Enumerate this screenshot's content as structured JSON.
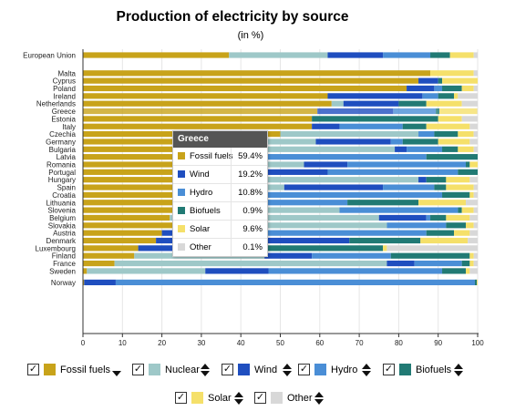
{
  "chart_data": {
    "type": "bar",
    "orientation": "horizontal",
    "stacked": true,
    "title": "Production of electricity by source",
    "subtitle": "(in %)",
    "xlim": [
      0,
      100
    ],
    "xticks": [
      0,
      10,
      20,
      30,
      40,
      50,
      60,
      70,
      80,
      90,
      100
    ],
    "categories": [
      "European Union",
      "Malta",
      "Cyprus",
      "Poland",
      "Ireland",
      "Netherlands",
      "Greece",
      "Estonia",
      "Italy",
      "Czechia",
      "Germany",
      "Bulgaria",
      "Latvia",
      "Romania",
      "Portugal",
      "Hungary",
      "Spain",
      "Croatia",
      "Lithuania",
      "Slovenia",
      "Belgium",
      "Slovakia",
      "Austria",
      "Denmark",
      "Luxembourg",
      "Finland",
      "France",
      "Sweden",
      "Norway"
    ],
    "series": [
      {
        "name": "Fossil fuels",
        "color": "#c8a31a",
        "values": [
          37,
          88,
          85,
          82,
          62,
          63,
          59.4,
          58,
          58,
          50,
          45,
          44,
          40,
          38,
          37,
          35,
          30,
          27,
          24,
          23,
          22,
          23,
          20,
          18.5,
          14,
          13,
          8,
          1,
          0.3
        ]
      },
      {
        "name": "Nuclear",
        "color": "#9ec8c8",
        "values": [
          25,
          0,
          0,
          0,
          0,
          3,
          0,
          0,
          0,
          35,
          14,
          35,
          0,
          18,
          0,
          50,
          21,
          0,
          0,
          42,
          53,
          54,
          0,
          0,
          0,
          33,
          69,
          30,
          0
        ]
      },
      {
        "name": "Wind",
        "color": "#1f4ebf",
        "values": [
          14,
          0,
          5,
          7,
          24,
          14,
          19.2,
          0,
          7,
          0,
          19,
          3,
          0,
          11,
          25,
          2,
          25,
          0,
          15,
          0,
          12,
          0,
          10,
          49,
          19,
          12,
          7,
          16,
          8
        ]
      },
      {
        "name": "Hydro",
        "color": "#4a8ed6",
        "values": [
          12,
          0,
          0,
          2,
          4,
          0,
          10.8,
          0,
          16,
          4,
          3,
          9,
          47,
          30,
          33,
          0,
          13,
          64,
          28,
          30,
          1,
          15,
          57,
          0,
          8,
          20,
          12,
          44,
          91
        ]
      },
      {
        "name": "Biofuels",
        "color": "#217a74",
        "values": [
          5,
          0,
          1,
          5,
          4,
          7,
          0.9,
          32,
          6,
          6,
          9,
          4,
          13,
          1,
          5,
          5,
          3,
          7,
          18,
          1,
          4,
          5,
          7,
          18,
          35,
          20,
          2,
          6,
          0.5
        ]
      },
      {
        "name": "Solar",
        "color": "#f5e06a",
        "values": [
          6,
          11,
          9,
          3,
          1,
          9,
          9.6,
          6,
          11,
          4,
          8,
          4,
          0,
          2,
          0,
          6,
          7,
          1,
          12,
          3,
          6,
          2,
          4,
          12,
          1,
          1,
          1,
          1,
          0.2
        ]
      },
      {
        "name": "Other",
        "color": "#d8d8d8",
        "values": [
          1,
          1,
          0,
          1,
          5,
          4,
          0.1,
          4,
          2,
          1,
          2,
          1,
          0,
          0,
          0,
          2,
          1,
          1,
          3,
          1,
          2,
          1,
          2,
          2.5,
          23,
          1,
          1,
          2,
          0
        ]
      }
    ],
    "highlight": "Greece",
    "legend_position": "bottom"
  },
  "tooltip": {
    "title": "Greece",
    "rows": [
      {
        "name": "Fossil fuels",
        "value": "59.4%",
        "color": "#c8a31a"
      },
      {
        "name": "Wind",
        "value": "19.2%",
        "color": "#1f4ebf"
      },
      {
        "name": "Hydro",
        "value": "10.8%",
        "color": "#4a8ed6"
      },
      {
        "name": "Biofuels",
        "value": "0.9%",
        "color": "#217a74"
      },
      {
        "name": "Solar",
        "value": "9.6%",
        "color": "#f5e06a"
      },
      {
        "name": "Other",
        "value": "0.1%",
        "color": "#d8d8d8"
      }
    ]
  },
  "legend": [
    {
      "label": "Fossil fuels",
      "checked": true,
      "color": "#c8a31a",
      "sort": "down"
    },
    {
      "label": "Nuclear",
      "checked": true,
      "color": "#9ec8c8",
      "sort": "both"
    },
    {
      "label": "Wind",
      "checked": true,
      "color": "#1f4ebf",
      "sort": "both"
    },
    {
      "label": "Hydro",
      "checked": true,
      "color": "#4a8ed6",
      "sort": "both"
    },
    {
      "label": "Biofuels",
      "checked": true,
      "color": "#217a74",
      "sort": "both"
    },
    {
      "label": "Solar",
      "checked": true,
      "color": "#f5e06a",
      "sort": "both"
    },
    {
      "label": "Other",
      "checked": true,
      "color": "#d8d8d8",
      "sort": "both"
    }
  ],
  "checkmark": "✓"
}
